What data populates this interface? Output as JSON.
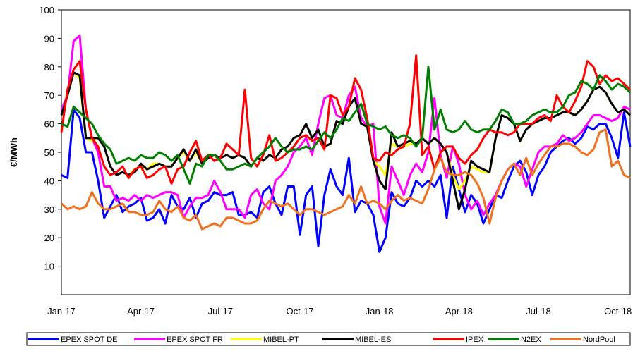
{
  "chart_data": {
    "type": "line",
    "ylabel": "€/MWh",
    "categories": [
      "Jan-17",
      null,
      null,
      null,
      null,
      null,
      null,
      null,
      null,
      null,
      null,
      null,
      null,
      "Apr-17",
      null,
      null,
      null,
      null,
      null,
      null,
      null,
      null,
      null,
      null,
      null,
      null,
      "Jul-17",
      null,
      null,
      null,
      null,
      null,
      null,
      null,
      null,
      null,
      null,
      null,
      null,
      "Oct-17",
      null,
      null,
      null,
      null,
      null,
      null,
      null,
      null,
      null,
      null,
      null,
      null,
      "Jan-18",
      null,
      null,
      null,
      null,
      null,
      null,
      null,
      null,
      null,
      null,
      null,
      null,
      "Apr-18",
      null,
      null,
      null,
      null,
      null,
      null,
      null,
      null,
      null,
      null,
      null,
      null,
      "Jul-18",
      null,
      null,
      null,
      null,
      null,
      null,
      null,
      null,
      null,
      null,
      null,
      null,
      "Oct-18",
      null,
      null
    ],
    "ylim": [
      0,
      100
    ],
    "yticks": [
      10,
      20,
      30,
      40,
      50,
      60,
      70,
      80,
      90,
      100
    ],
    "grid": false,
    "legend": "bottom",
    "series": [
      {
        "name": "EPEX SPOT DE",
        "color": "#0000ff",
        "values": [
          42,
          41,
          65,
          62,
          50,
          50,
          40,
          27,
          31,
          35,
          29,
          31,
          32,
          34,
          26,
          27,
          30,
          25,
          35,
          31,
          30,
          34,
          27,
          32,
          33,
          36,
          35,
          35,
          36,
          28,
          28,
          29,
          27,
          36,
          38,
          32,
          28,
          38,
          38,
          21,
          35,
          38,
          17,
          35,
          44,
          38,
          35,
          48,
          29,
          33,
          32,
          28,
          15,
          20,
          36,
          32,
          31,
          34,
          40,
          38,
          40,
          38,
          42,
          27,
          45,
          37,
          29,
          35,
          32,
          25,
          30,
          35,
          34,
          40,
          45,
          47,
          43,
          35,
          42,
          45,
          50,
          52,
          54,
          55,
          53,
          55,
          59,
          58,
          60,
          60,
          55,
          48,
          64,
          52
        ]
      },
      {
        "name": "EPEX SPOT FR",
        "color": "#ff00ff",
        "values": [
          65,
          70,
          89,
          91,
          65,
          55,
          50,
          38,
          38,
          33,
          34,
          33,
          35,
          33,
          35,
          34,
          35,
          36,
          36,
          35,
          27,
          31,
          34,
          34,
          35,
          40,
          36,
          30,
          30,
          30,
          27,
          35,
          37,
          32,
          30,
          40,
          42,
          45,
          50,
          52,
          55,
          49,
          60,
          69,
          70,
          63,
          62,
          70,
          73,
          62,
          59,
          60,
          31,
          25,
          45,
          40,
          35,
          42,
          46,
          43,
          50,
          69,
          49,
          41,
          52,
          46,
          35,
          30,
          33,
          28,
          32,
          35,
          40,
          44,
          46,
          45,
          38,
          44,
          50,
          52,
          52,
          53,
          56,
          54,
          55,
          57,
          60,
          63,
          63,
          62,
          61,
          62,
          66,
          65
        ]
      },
      {
        "name": "MIBEL-PT",
        "color": "#ffff00",
        "values": [
          63,
          70,
          78,
          76,
          55,
          54,
          55,
          52,
          45,
          42,
          43,
          42,
          44,
          45,
          44,
          46,
          46,
          45,
          45,
          48,
          50,
          47,
          50,
          46,
          48,
          49,
          48,
          49,
          48,
          49,
          48,
          45,
          48,
          47,
          49,
          48,
          51,
          52,
          55,
          56,
          60,
          55,
          58,
          52,
          53,
          61,
          60,
          66,
          69,
          60,
          59,
          47,
          45,
          42,
          53,
          52,
          52,
          53,
          53,
          55,
          53,
          55,
          53,
          50,
          42,
          37,
          40,
          45,
          44,
          43,
          43,
          55,
          63,
          62,
          60,
          54,
          58,
          60,
          61,
          62,
          62,
          63,
          64,
          64,
          63,
          65,
          68,
          72,
          73,
          71,
          67,
          64,
          65,
          63
        ]
      },
      {
        "name": "MIBEL-ES",
        "color": "#000000",
        "values": [
          63,
          70,
          78,
          77,
          55,
          55,
          55,
          52,
          45,
          42,
          43,
          42,
          43,
          46,
          44,
          45,
          46,
          45,
          45,
          48,
          51,
          47,
          51,
          46,
          48,
          49,
          48,
          49,
          48,
          49,
          48,
          45,
          48,
          47,
          49,
          48,
          51,
          52,
          55,
          56,
          60,
          55,
          58,
          52,
          53,
          61,
          60,
          66,
          69,
          60,
          59,
          47,
          40,
          37,
          57,
          52,
          53,
          54,
          53,
          55,
          53,
          55,
          53,
          50,
          40,
          30,
          37,
          47,
          45,
          44,
          43,
          55,
          63,
          62,
          60,
          54,
          58,
          60,
          61,
          62,
          62,
          63,
          64,
          64,
          63,
          65,
          68,
          72,
          73,
          71,
          67,
          64,
          65,
          63
        ]
      },
      {
        "name": "IPEX",
        "color": "#ff0000",
        "values": [
          57,
          72,
          79,
          82,
          65,
          55,
          52,
          45,
          42,
          43,
          45,
          41,
          44,
          45,
          41,
          42,
          44,
          45,
          39,
          44,
          45,
          50,
          54,
          47,
          49,
          47,
          48,
          53,
          51,
          49,
          72,
          48,
          45,
          49,
          56,
          47,
          48,
          50,
          52,
          55,
          56,
          54,
          55,
          51,
          70,
          69,
          63,
          66,
          76,
          72,
          62,
          48,
          47,
          50,
          49,
          51,
          52,
          60,
          84,
          49,
          52,
          44,
          50,
          52,
          52,
          48,
          46,
          49,
          51,
          55,
          58,
          57,
          57,
          56,
          57,
          60,
          60,
          60,
          62,
          63,
          61,
          70,
          66,
          64,
          68,
          73,
          82,
          80,
          74,
          77,
          75,
          76,
          74,
          72
        ]
      },
      {
        "name": "N2EX",
        "color": "#008000",
        "values": [
          60,
          59,
          66,
          64,
          62,
          60,
          56,
          53,
          51,
          46,
          47,
          48,
          47,
          49,
          48,
          48,
          50,
          49,
          47,
          49,
          44,
          39,
          46,
          45,
          49,
          49,
          47,
          44,
          44,
          45,
          46,
          45,
          48,
          50,
          52,
          55,
          52,
          50,
          51,
          51,
          52,
          51,
          54,
          57,
          55,
          58,
          62,
          61,
          64,
          67,
          60,
          59,
          58,
          59,
          56,
          55,
          56,
          55,
          52,
          55,
          80,
          58,
          65,
          58,
          57,
          58,
          61,
          58,
          57,
          58,
          58,
          61,
          65,
          64,
          60,
          60,
          61,
          63,
          64,
          65,
          64,
          64,
          66,
          70,
          71,
          75,
          74,
          72,
          77,
          75,
          72,
          74,
          73,
          71
        ]
      },
      {
        "name": "NordPool",
        "color": "#f07020",
        "values": [
          32,
          30,
          31,
          30,
          31,
          36,
          32,
          30,
          30,
          31,
          32,
          29,
          29,
          28,
          28,
          29,
          33,
          30,
          29,
          31,
          27,
          26,
          28,
          23,
          24,
          25,
          24,
          27,
          27,
          26,
          25,
          25,
          26,
          30,
          33,
          32,
          31,
          32,
          30,
          28,
          30,
          30,
          29,
          28,
          29,
          30,
          31,
          35,
          32,
          38,
          32,
          33,
          32,
          30,
          33,
          35,
          33,
          34,
          33,
          32,
          37,
          44,
          48,
          43,
          42,
          42,
          43,
          42,
          39,
          34,
          25,
          34,
          40,
          44,
          46,
          42,
          48,
          42,
          46,
          49,
          52,
          52,
          53,
          53,
          52,
          50,
          49,
          51,
          57,
          58,
          45,
          47,
          42,
          41
        ]
      }
    ]
  }
}
